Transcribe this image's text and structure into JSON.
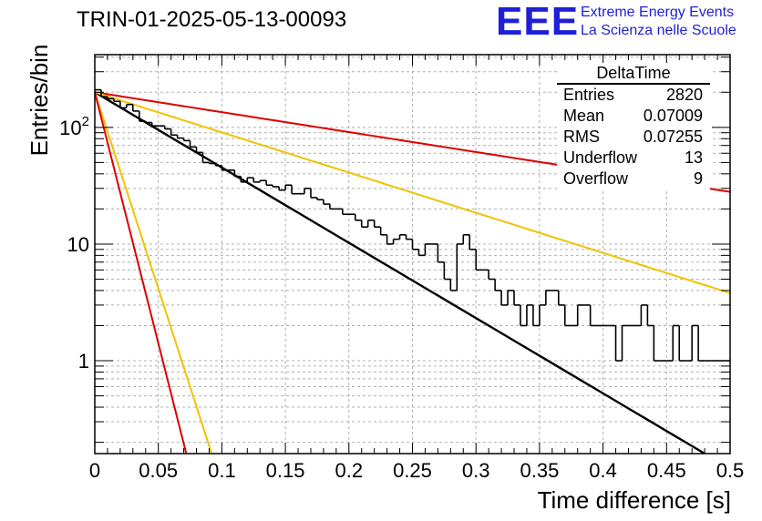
{
  "header": {
    "run_title": "TRIN-01-2025-05-13-00093",
    "logo_mark": "EEE",
    "logo_line1": "Extreme Energy Events",
    "logo_line2": "La Scienza nelle Scuole"
  },
  "stats_box": {
    "title": "DeltaTime",
    "rows": [
      {
        "label": "Entries",
        "value": "2820"
      },
      {
        "label": "Mean",
        "value": "0.07009"
      },
      {
        "label": "RMS",
        "value": "0.07255"
      },
      {
        "label": "Underflow",
        "value": "13"
      },
      {
        "label": "Overflow",
        "value": "9"
      }
    ]
  },
  "colors": {
    "histogram": "#000000",
    "fit": "#000000",
    "red_curves": "#dd0000",
    "yellow_curves": "#f2c200",
    "grid": "#b0b0b0",
    "logo": "#1f1fd8"
  },
  "chart_data": {
    "type": "line",
    "title": "TRIN-01-2025-05-13-00093",
    "xlabel": "Time difference [s]",
    "ylabel": "Entries/bin",
    "xlim": [
      0,
      0.5
    ],
    "ylim": [
      0.16,
      420
    ],
    "yscale": "log",
    "grid": true,
    "x_ticks": [
      "0",
      "0.05",
      "0.1",
      "0.15",
      "0.2",
      "0.25",
      "0.3",
      "0.35",
      "0.4",
      "0.45",
      "0.5"
    ],
    "y_ticks": [
      "1",
      "10",
      "10^2"
    ],
    "bin_width": 0.005,
    "histogram_counts": [
      210,
      183,
      176,
      167,
      147,
      157,
      138,
      113,
      110,
      103,
      103,
      97,
      86,
      81,
      77,
      68,
      61,
      50,
      49,
      47,
      43,
      43,
      38,
      34,
      37,
      34,
      35,
      32,
      31,
      29,
      32,
      27,
      27,
      30,
      25,
      24,
      22,
      20,
      20,
      18,
      18,
      16,
      14,
      16,
      14,
      12,
      10,
      11,
      12,
      11,
      9,
      8,
      10,
      10,
      7,
      5,
      4,
      10,
      12,
      9,
      6,
      6,
      5,
      4,
      3,
      4,
      3,
      2,
      3,
      2,
      3,
      4,
      4,
      3,
      2,
      2,
      3,
      3,
      2,
      2,
      2,
      2,
      1,
      2,
      2,
      2,
      3,
      2,
      1,
      1,
      1,
      2,
      1,
      1,
      2,
      1,
      1,
      1,
      1,
      1
    ],
    "series": [
      {
        "color": "black",
        "x": [
          0,
          0.48
        ],
        "y": [
          200,
          0.16
        ]
      },
      {
        "color": "red",
        "x": [
          0,
          0.5
        ],
        "y": [
          200,
          28
        ]
      },
      {
        "color": "yellow",
        "x": [
          0,
          0.5
        ],
        "y": [
          200,
          3.8
        ]
      },
      {
        "color": "yellow",
        "x": [
          0,
          0.092
        ],
        "y": [
          200,
          0.16
        ]
      },
      {
        "color": "red",
        "x": [
          0,
          0.072
        ],
        "y": [
          200,
          0.16
        ]
      }
    ]
  }
}
